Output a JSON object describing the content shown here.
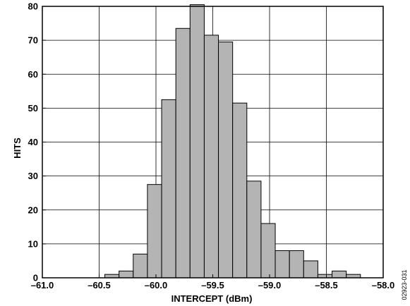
{
  "chart_data": {
    "type": "bar",
    "subtype": "histogram",
    "xlabel": "INTERCEPT (dBm)",
    "ylabel": "HITS",
    "xlim": [
      -61.0,
      -58.0
    ],
    "ylim": [
      0,
      80
    ],
    "x_ticks": [
      -61.0,
      -60.5,
      -60.0,
      -59.5,
      -59.0,
      -58.5,
      -58.0
    ],
    "x_tick_labels": [
      "–61.0",
      "–60.5",
      "–60.0",
      "–59.5",
      "–59.0",
      "–58.5",
      "–58.0"
    ],
    "y_ticks": [
      0,
      10,
      20,
      30,
      40,
      50,
      60,
      70,
      80
    ],
    "y_tick_labels": [
      "0",
      "10",
      "20",
      "30",
      "40",
      "50",
      "60",
      "70",
      "80"
    ],
    "grid": true,
    "bin_width": 0.125,
    "bin_starts": [
      -60.45,
      -60.325,
      -60.2,
      -60.075,
      -59.95,
      -59.825,
      -59.7,
      -59.575,
      -59.45,
      -59.325,
      -59.2,
      -59.075,
      -58.95,
      -58.825,
      -58.7,
      -58.575,
      -58.45,
      -58.325,
      -58.2
    ],
    "values": [
      1,
      2,
      7,
      27.5,
      52.5,
      73.5,
      80.5,
      71.5,
      69.5,
      51.5,
      28.5,
      16,
      8,
      8,
      5,
      1,
      2,
      1,
      0
    ],
    "bar_color": "#b4b4b4",
    "edge_color": "#000000"
  },
  "figure_id": "02923-031"
}
